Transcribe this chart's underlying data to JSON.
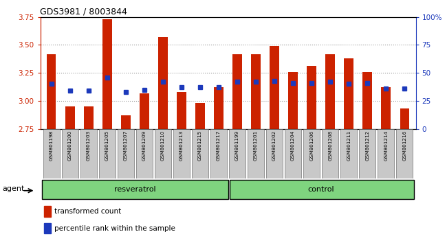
{
  "title": "GDS3981 / 8003844",
  "samples": [
    "GSM801198",
    "GSM801200",
    "GSM801203",
    "GSM801205",
    "GSM801207",
    "GSM801209",
    "GSM801210",
    "GSM801213",
    "GSM801215",
    "GSM801217",
    "GSM801199",
    "GSM801201",
    "GSM801202",
    "GSM801204",
    "GSM801206",
    "GSM801208",
    "GSM801211",
    "GSM801212",
    "GSM801214",
    "GSM801216"
  ],
  "red_values": [
    3.42,
    2.95,
    2.95,
    3.73,
    2.87,
    3.07,
    3.57,
    3.08,
    2.98,
    3.12,
    3.42,
    3.42,
    3.49,
    3.26,
    3.31,
    3.42,
    3.38,
    3.26,
    3.12,
    2.93
  ],
  "blue_values": [
    3.15,
    3.09,
    3.09,
    3.21,
    3.08,
    3.1,
    3.17,
    3.12,
    3.12,
    3.12,
    3.17,
    3.17,
    3.18,
    3.16,
    3.16,
    3.17,
    3.15,
    3.16,
    3.11,
    3.11
  ],
  "y_min": 2.75,
  "y_max": 3.75,
  "y_ticks": [
    2.75,
    3.0,
    3.25,
    3.5,
    3.75
  ],
  "y2_ticks": [
    0,
    25,
    50,
    75,
    100
  ],
  "y2_tick_labels": [
    "0",
    "25",
    "50",
    "75",
    "100%"
  ],
  "bar_color": "#CC2200",
  "blue_color": "#1C39BB",
  "tick_color_left": "#CC2200",
  "tick_color_right": "#1C39BB",
  "bg_color": "#C8C8C8",
  "plot_bg": "#FFFFFF",
  "grid_color": "#999999",
  "legend_red": "transformed count",
  "legend_blue": "percentile rank within the sample",
  "agent_label": "agent",
  "group1_label": "resveratrol",
  "group2_label": "control",
  "group_color": "#7FD47F",
  "group_border": "#000000"
}
